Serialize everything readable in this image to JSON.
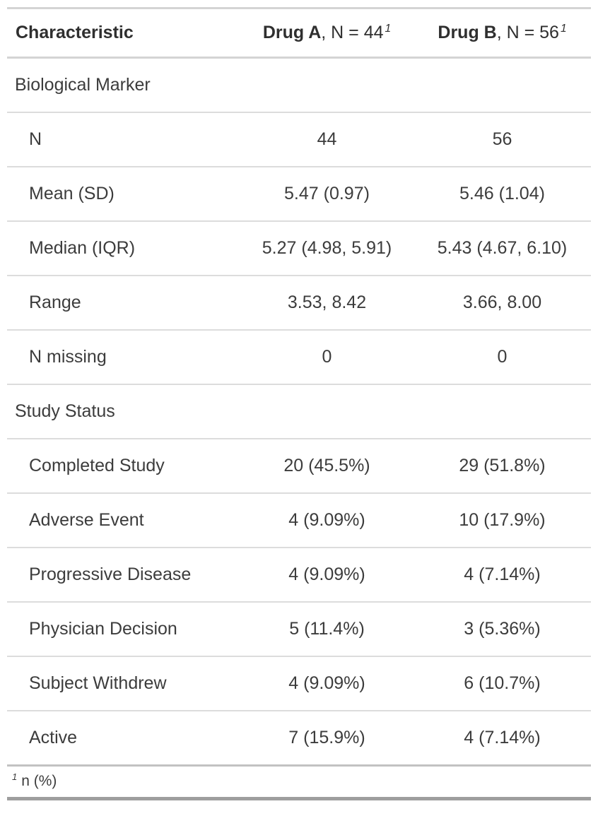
{
  "header": {
    "characteristic": "Characteristic",
    "drug_a": {
      "name": "Drug A",
      "n_label": ", N = 44",
      "footnote_mark": "1"
    },
    "drug_b": {
      "name": "Drug B",
      "n_label": ", N = 56",
      "footnote_mark": "1"
    }
  },
  "rows": [
    {
      "label": "Biological Marker",
      "a": "",
      "b": ""
    },
    {
      "label": "N",
      "a": "44",
      "b": "56"
    },
    {
      "label": "Mean (SD)",
      "a": "5.47 (0.97)",
      "b": "5.46 (1.04)"
    },
    {
      "label": "Median (IQR)",
      "a": "5.27 (4.98, 5.91)",
      "b": "5.43 (4.67, 6.10)"
    },
    {
      "label": "Range",
      "a": "3.53, 8.42",
      "b": "3.66, 8.00"
    },
    {
      "label": "N missing",
      "a": "0",
      "b": "0"
    },
    {
      "label": "Study Status",
      "a": "",
      "b": ""
    },
    {
      "label": "Completed Study",
      "a": "20 (45.5%)",
      "b": "29 (51.8%)"
    },
    {
      "label": "Adverse Event",
      "a": "4 (9.09%)",
      "b": "10 (17.9%)"
    },
    {
      "label": "Progressive Disease",
      "a": "4 (9.09%)",
      "b": "4 (7.14%)"
    },
    {
      "label": "Physician Decision",
      "a": "5 (11.4%)",
      "b": "3 (5.36%)"
    },
    {
      "label": "Subject Withdrew",
      "a": "4 (9.09%)",
      "b": "6 (10.7%)"
    },
    {
      "label": "Active",
      "a": "7 (15.9%)",
      "b": "4 (7.14%)"
    }
  ],
  "footnote": {
    "mark": "1",
    "text": "n (%)"
  },
  "colors": {
    "text": "#3c3c3c",
    "header_text": "#2f2f2f",
    "row_border": "#dcdcdc",
    "top_border": "#d4d4d4",
    "footer_separator": "#c2c2c2",
    "bottom_border": "#9e9e9e",
    "background": "#ffffff"
  }
}
